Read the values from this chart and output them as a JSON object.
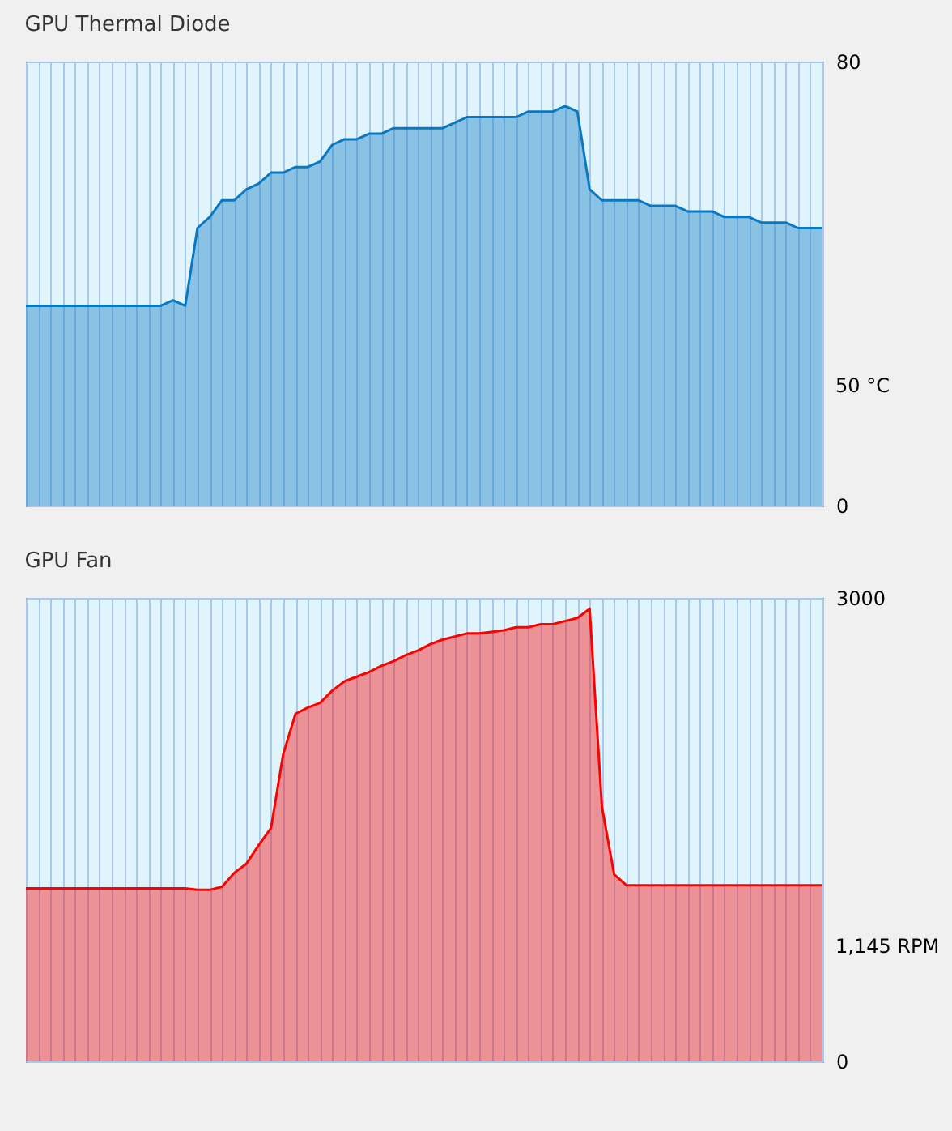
{
  "chart_data": [
    {
      "type": "area",
      "title": "GPU Thermal Diode",
      "categories": [
        null,
        null,
        null,
        null,
        null,
        null,
        null,
        null,
        null,
        null,
        null,
        null,
        null,
        null,
        null,
        null,
        null,
        null,
        null,
        null,
        null,
        null,
        null,
        null,
        null,
        null,
        null,
        null,
        null,
        null,
        null,
        null,
        null,
        null,
        null,
        null,
        null,
        null,
        null,
        null,
        null,
        null,
        null,
        null,
        null,
        null,
        null,
        null,
        null,
        null,
        null,
        null,
        null,
        null,
        null,
        null,
        null,
        null,
        null,
        null,
        null,
        null,
        null,
        null,
        null,
        null
      ],
      "series": [
        {
          "color": "#0a78c0",
          "values": [
            36,
            36,
            36,
            36,
            36,
            36,
            36,
            36,
            36,
            36,
            36,
            36,
            37,
            36,
            50,
            52,
            55,
            55,
            57,
            58,
            60,
            60,
            61,
            61,
            62,
            65,
            66,
            66,
            67,
            67,
            68,
            68,
            68,
            68,
            68,
            69,
            70,
            70,
            70,
            70,
            70,
            71,
            71,
            71,
            72,
            71,
            57,
            55,
            55,
            55,
            55,
            54,
            54,
            54,
            53,
            53,
            53,
            52,
            52,
            52,
            51,
            51,
            51,
            50,
            50,
            50
          ]
        }
      ],
      "ylim": [
        0,
        80
      ],
      "yticks": [
        0,
        80
      ],
      "grid": true,
      "tick_labels": "y",
      "annotations": [
        "50 °C"
      ]
    },
    {
      "type": "area",
      "title": "GPU Fan",
      "categories": [
        null,
        null,
        null,
        null,
        null,
        null,
        null,
        null,
        null,
        null,
        null,
        null,
        null,
        null,
        null,
        null,
        null,
        null,
        null,
        null,
        null,
        null,
        null,
        null,
        null,
        null,
        null,
        null,
        null,
        null,
        null,
        null,
        null,
        null,
        null,
        null,
        null,
        null,
        null,
        null,
        null,
        null,
        null,
        null,
        null,
        null,
        null,
        null,
        null,
        null,
        null,
        null,
        null,
        null,
        null,
        null,
        null,
        null,
        null,
        null,
        null,
        null,
        null,
        null,
        null,
        null
      ],
      "series": [
        {
          "color": "#ff0000",
          "values": [
            1120,
            1120,
            1120,
            1120,
            1120,
            1120,
            1120,
            1120,
            1120,
            1120,
            1120,
            1120,
            1120,
            1120,
            1110,
            1110,
            1130,
            1220,
            1280,
            1400,
            1510,
            1990,
            2250,
            2290,
            2320,
            2400,
            2460,
            2490,
            2520,
            2560,
            2590,
            2630,
            2660,
            2700,
            2730,
            2750,
            2770,
            2770,
            2780,
            2790,
            2810,
            2810,
            2830,
            2830,
            2850,
            2870,
            2930,
            1650,
            1210,
            1140,
            1140,
            1140,
            1140,
            1140,
            1140,
            1140,
            1140,
            1140,
            1140,
            1140,
            1140,
            1140,
            1140,
            1140,
            1140,
            1140
          ]
        }
      ],
      "ylim": [
        0,
        3000
      ],
      "yticks": [
        0,
        3000
      ],
      "grid": true,
      "tick_labels": "y",
      "annotations": [
        "1,145 RPM"
      ]
    }
  ]
}
